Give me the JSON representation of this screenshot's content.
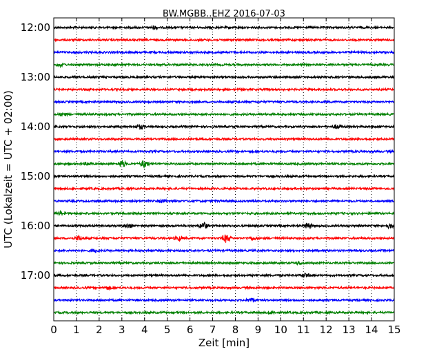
{
  "chart_data": {
    "type": "line",
    "title": "BW.MGBB..EHZ 2016-07-03",
    "xlabel": "Zeit  [min]",
    "ylabel": "UTC (Lokalzeit = UTC + 02:00)",
    "xlim": [
      0,
      15
    ],
    "x_ticks": [
      0,
      1,
      2,
      3,
      4,
      5,
      6,
      7,
      8,
      9,
      10,
      11,
      12,
      13,
      14,
      15
    ],
    "x_tick_labels": [
      "0",
      "1",
      "2",
      "3",
      "4",
      "5",
      "6",
      "7",
      "8",
      "9",
      "10",
      "11",
      "12",
      "13",
      "14",
      "15"
    ],
    "y_tick_labels": [
      "12:00",
      "13:00",
      "14:00",
      "15:00",
      "16:00",
      "17:00"
    ],
    "grid": true,
    "series_colors": [
      "#000000",
      "#ff0000",
      "#0000ff",
      "#008000"
    ],
    "traces": [
      {
        "start": "12:00",
        "color": "#000000",
        "events": [
          {
            "x": 4.4,
            "amp": 2
          }
        ]
      },
      {
        "start": "12:15",
        "color": "#ff0000",
        "events": []
      },
      {
        "start": "12:30",
        "color": "#0000ff",
        "events": []
      },
      {
        "start": "12:45",
        "color": "#008000",
        "events": [
          {
            "x": 0.3,
            "amp": 2
          }
        ]
      },
      {
        "start": "13:00",
        "color": "#000000",
        "events": []
      },
      {
        "start": "13:15",
        "color": "#ff0000",
        "events": []
      },
      {
        "start": "13:30",
        "color": "#0000ff",
        "events": []
      },
      {
        "start": "13:45",
        "color": "#008000",
        "events": [
          {
            "x": 0.4,
            "amp": 2
          }
        ]
      },
      {
        "start": "14:00",
        "color": "#000000",
        "events": [
          {
            "x": 3.8,
            "amp": 3
          },
          {
            "x": 12.5,
            "amp": 3
          }
        ]
      },
      {
        "start": "14:15",
        "color": "#ff0000",
        "events": []
      },
      {
        "start": "14:30",
        "color": "#0000ff",
        "events": []
      },
      {
        "start": "14:45",
        "color": "#008000",
        "events": [
          {
            "x": 3.0,
            "amp": 5
          },
          {
            "x": 4.0,
            "amp": 5
          },
          {
            "x": 1.5,
            "amp": 2
          }
        ]
      },
      {
        "start": "15:00",
        "color": "#000000",
        "events": []
      },
      {
        "start": "15:15",
        "color": "#ff0000",
        "events": []
      },
      {
        "start": "15:30",
        "color": "#0000ff",
        "events": [
          {
            "x": 4.8,
            "amp": 2
          }
        ]
      },
      {
        "start": "15:45",
        "color": "#008000",
        "events": [
          {
            "x": 0.3,
            "amp": 2
          }
        ]
      },
      {
        "start": "16:00",
        "color": "#000000",
        "events": [
          {
            "x": 3.3,
            "amp": 3
          },
          {
            "x": 6.6,
            "amp": 5
          },
          {
            "x": 11.2,
            "amp": 4
          },
          {
            "x": 14.8,
            "amp": 3
          }
        ]
      },
      {
        "start": "16:15",
        "color": "#ff0000",
        "events": [
          {
            "x": 1.1,
            "amp": 3
          },
          {
            "x": 5.5,
            "amp": 3
          },
          {
            "x": 7.6,
            "amp": 6
          },
          {
            "x": 8.8,
            "amp": 2
          }
        ]
      },
      {
        "start": "16:30",
        "color": "#0000ff",
        "events": [
          {
            "x": 1.8,
            "amp": 2
          }
        ]
      },
      {
        "start": "16:45",
        "color": "#008000",
        "events": [
          {
            "x": 10.8,
            "amp": 2
          }
        ]
      },
      {
        "start": "17:00",
        "color": "#000000",
        "events": [
          {
            "x": 11.1,
            "amp": 3
          }
        ]
      },
      {
        "start": "17:15",
        "color": "#ff0000",
        "events": [
          {
            "x": 2.4,
            "amp": 2
          }
        ]
      },
      {
        "start": "17:30",
        "color": "#0000ff",
        "events": [
          {
            "x": 8.7,
            "amp": 3
          }
        ]
      },
      {
        "start": "17:45",
        "color": "#008000",
        "events": [
          {
            "x": 9.6,
            "amp": 2
          }
        ]
      }
    ]
  }
}
